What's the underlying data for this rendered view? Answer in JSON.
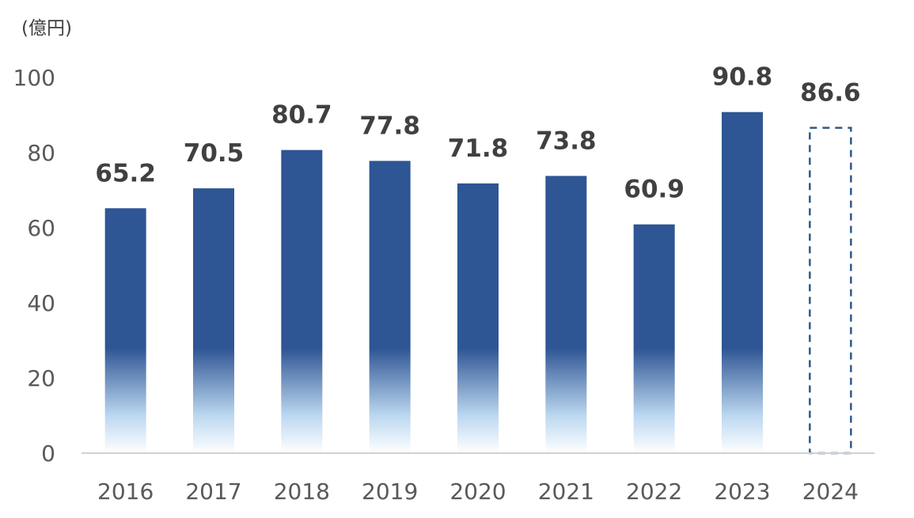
{
  "chart_data": {
    "type": "bar",
    "unit_label": "(億円)",
    "categories": [
      "2016",
      "2017",
      "2018",
      "2019",
      "2020",
      "2021",
      "2022",
      "2023",
      "2024"
    ],
    "values": [
      65.2,
      70.5,
      80.7,
      77.8,
      71.8,
      73.8,
      60.9,
      90.8,
      86.6
    ],
    "value_labels": [
      "65.2",
      "70.5",
      "80.7",
      "77.8",
      "71.8",
      "73.8",
      "60.9",
      "90.8",
      "86.6"
    ],
    "dashed_outline_categories": [
      "2024"
    ],
    "ylim": [
      0,
      100
    ],
    "yticks": [
      0,
      20,
      40,
      60,
      80,
      100
    ],
    "grid": false,
    "colors": {
      "bar_top": "#2e5594",
      "bar_bottom": "#ffffff",
      "bar_fade_mid": "#bcd7f0",
      "dashed_outline": "#2e5a8a",
      "axis": "#d0d0d0"
    }
  }
}
